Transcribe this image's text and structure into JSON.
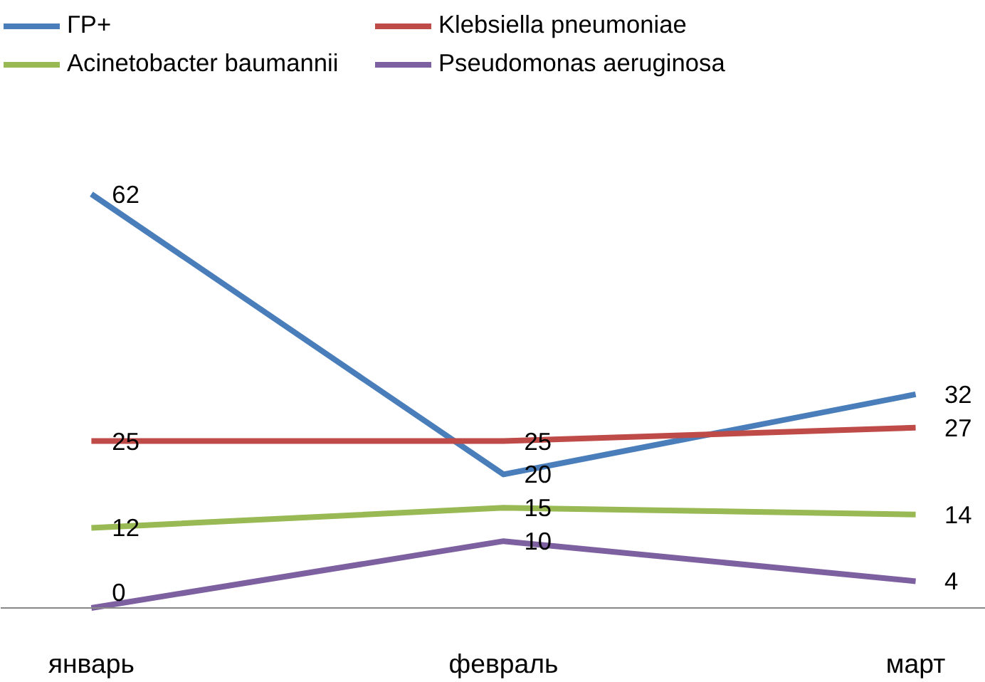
{
  "chart_data": {
    "type": "line",
    "categories": [
      "январь",
      "февраль",
      "март"
    ],
    "series": [
      {
        "name": "ГР+",
        "color": "#4a7ebb",
        "values": [
          62,
          20,
          32
        ]
      },
      {
        "name": "Klebsiella pneumoniae",
        "color": "#be4b48",
        "values": [
          25,
          25,
          27
        ]
      },
      {
        "name": "Acinetobacter baumannii",
        "color": "#98b954",
        "values": [
          12,
          15,
          14
        ]
      },
      {
        "name": "Pseudomonas aeruginosa",
        "color": "#7d60a0",
        "values": [
          0,
          10,
          4
        ]
      }
    ],
    "data_labels": true,
    "legend": "top",
    "grid": false,
    "marker": "none",
    "line_style": "solid"
  }
}
